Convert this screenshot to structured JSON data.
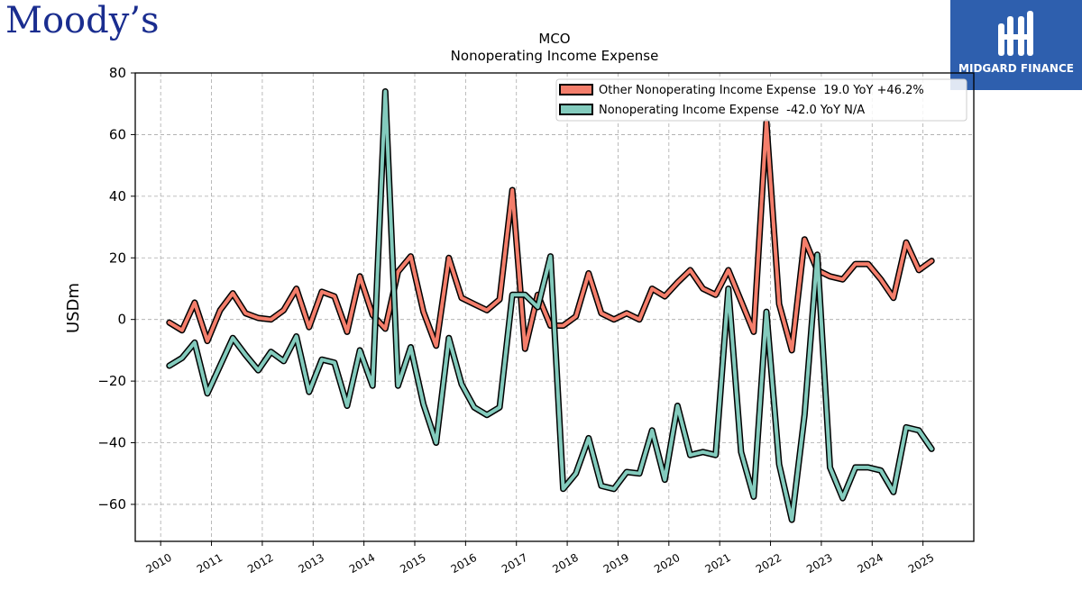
{
  "brand": {
    "logo_text": "Moody’s",
    "partner_name": "MIDGARD FINANCE"
  },
  "chart_data": {
    "type": "line",
    "title": "MCO",
    "subtitle": "Nonoperating Income Expense",
    "xlabel": "",
    "ylabel": "USDm",
    "ylim": [
      -72,
      80
    ],
    "xlim": [
      2009.5,
      2026.0
    ],
    "yticks": [
      80,
      60,
      40,
      20,
      0,
      -20,
      -40,
      -60
    ],
    "xticks": [
      "2010",
      "2011",
      "2012",
      "2013",
      "2014",
      "2015",
      "2016",
      "2017",
      "2018",
      "2019",
      "2020",
      "2021",
      "2022",
      "2023",
      "2024",
      "2025"
    ],
    "grid": true,
    "legend_position": "top-right",
    "series": [
      {
        "name": "Other Nonoperating Income Expense  19.0 YoY +46.2%",
        "color": "#f47e6b",
        "x": [
          2010.17,
          2010.42,
          2010.67,
          2010.92,
          2011.17,
          2011.42,
          2011.67,
          2011.92,
          2012.17,
          2012.42,
          2012.67,
          2012.92,
          2013.17,
          2013.42,
          2013.67,
          2013.92,
          2014.17,
          2014.42,
          2014.67,
          2014.92,
          2015.17,
          2015.42,
          2015.67,
          2015.92,
          2016.17,
          2016.42,
          2016.67,
          2016.92,
          2017.17,
          2017.42,
          2017.67,
          2017.92,
          2018.17,
          2018.42,
          2018.67,
          2018.92,
          2019.17,
          2019.42,
          2019.67,
          2019.92,
          2020.17,
          2020.42,
          2020.67,
          2020.92,
          2021.17,
          2021.42,
          2021.67,
          2021.92,
          2022.17,
          2022.42,
          2022.67,
          2022.92,
          2023.17,
          2023.42,
          2023.67,
          2023.92,
          2024.17,
          2024.42,
          2024.67,
          2024.92,
          2025.17
        ],
        "values": [
          -1,
          -3.5,
          5.5,
          -7,
          3,
          8.5,
          2,
          0.5,
          0,
          3,
          10,
          -2.5,
          9,
          7.5,
          -4,
          14,
          1.5,
          -3,
          15.5,
          20.5,
          2.5,
          -8.5,
          20,
          7,
          5,
          3,
          6.5,
          42,
          -9.5,
          8,
          -2,
          -2,
          1,
          15,
          2,
          0,
          2,
          0,
          10,
          7.5,
          12,
          16,
          10,
          8,
          16,
          6,
          -4,
          64,
          5,
          -10,
          26,
          16,
          14,
          13,
          18,
          18,
          13,
          7,
          25,
          16,
          19
        ]
      },
      {
        "name": "Nonoperating Income Expense  -42.0 YoY N/A",
        "color": "#83cbbd",
        "x": [
          2010.17,
          2010.42,
          2010.67,
          2010.92,
          2011.17,
          2011.42,
          2011.67,
          2011.92,
          2012.17,
          2012.42,
          2012.67,
          2012.92,
          2013.17,
          2013.42,
          2013.67,
          2013.92,
          2014.17,
          2014.42,
          2014.67,
          2014.92,
          2015.17,
          2015.42,
          2015.67,
          2015.92,
          2016.17,
          2016.42,
          2016.67,
          2016.92,
          2017.17,
          2017.42,
          2017.67,
          2017.92,
          2018.17,
          2018.42,
          2018.67,
          2018.92,
          2019.17,
          2019.42,
          2019.67,
          2019.92,
          2020.17,
          2020.42,
          2020.67,
          2020.92,
          2021.17,
          2021.42,
          2021.67,
          2021.92,
          2022.17,
          2022.42,
          2022.67,
          2022.92,
          2023.17,
          2023.42,
          2023.67,
          2023.92,
          2024.17,
          2024.42,
          2024.67,
          2024.92,
          2025.17
        ],
        "values": [
          -15,
          -12.5,
          -7.5,
          -24,
          -15,
          -6,
          -11.5,
          -16.5,
          -10.5,
          -13.5,
          -5.5,
          -23.5,
          -13,
          -14,
          -28,
          -10,
          -21.5,
          74,
          -21.5,
          -9,
          -27.5,
          -40,
          -6,
          -21,
          -28.5,
          -31,
          -28.5,
          8,
          8,
          4,
          20.5,
          -55,
          -50,
          -38.5,
          -54,
          -55,
          -49.5,
          -50,
          -36,
          -52,
          -28,
          -44,
          -43,
          -44,
          10,
          -43,
          -57.5,
          2.5,
          -47,
          -65,
          -31,
          21,
          -48,
          -58,
          -48,
          -48,
          -49,
          -56,
          -35,
          -36,
          -42
        ]
      }
    ]
  }
}
